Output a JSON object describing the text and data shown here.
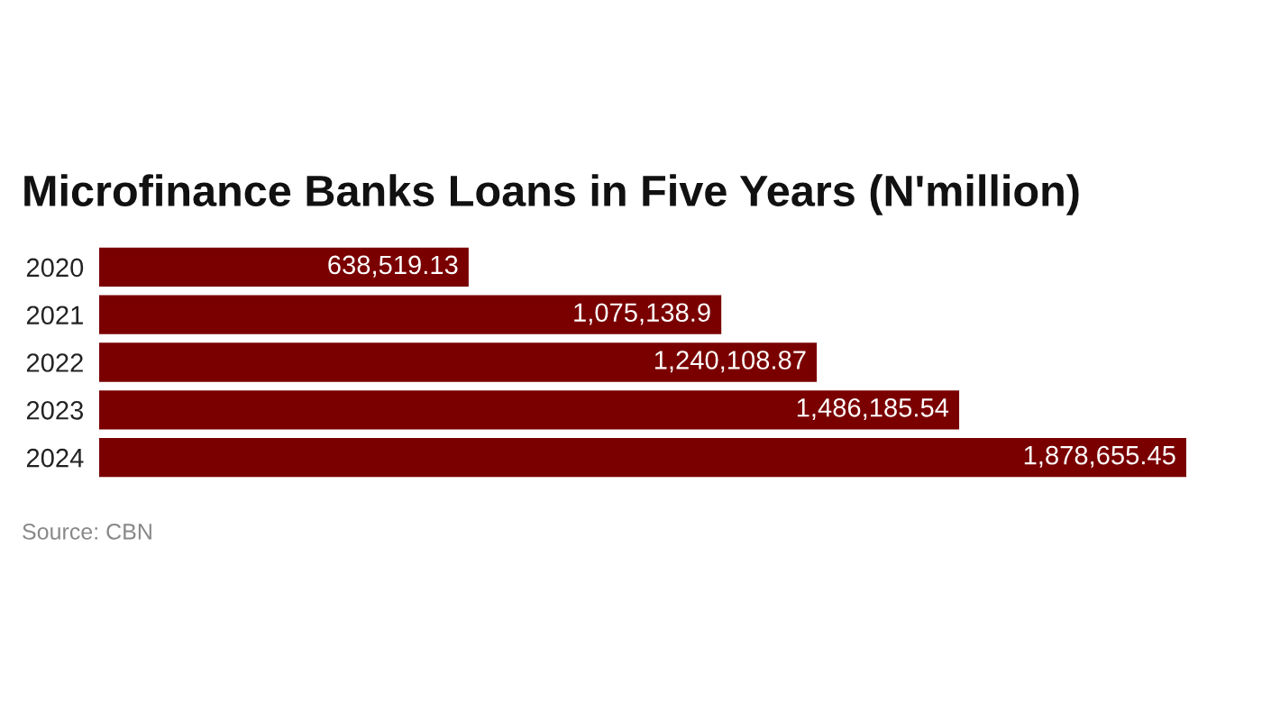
{
  "chart_data": {
    "type": "bar",
    "orientation": "horizontal",
    "title": "Microfinance Banks Loans in Five Years (N'million)",
    "categories": [
      "2020",
      "2021",
      "2022",
      "2023",
      "2024"
    ],
    "values": [
      638519.13,
      1075138.9,
      1240108.87,
      1486185.54,
      1878655.45
    ],
    "value_labels": [
      "638,519.13",
      "1,075,138.9",
      "1,240,108.87",
      "1,486,185.54",
      "1,878,655.45"
    ],
    "color": "#7a0000",
    "grid": false,
    "legend": false,
    "tick_labels": "y",
    "annotations": [
      "Source: CBN"
    ]
  }
}
